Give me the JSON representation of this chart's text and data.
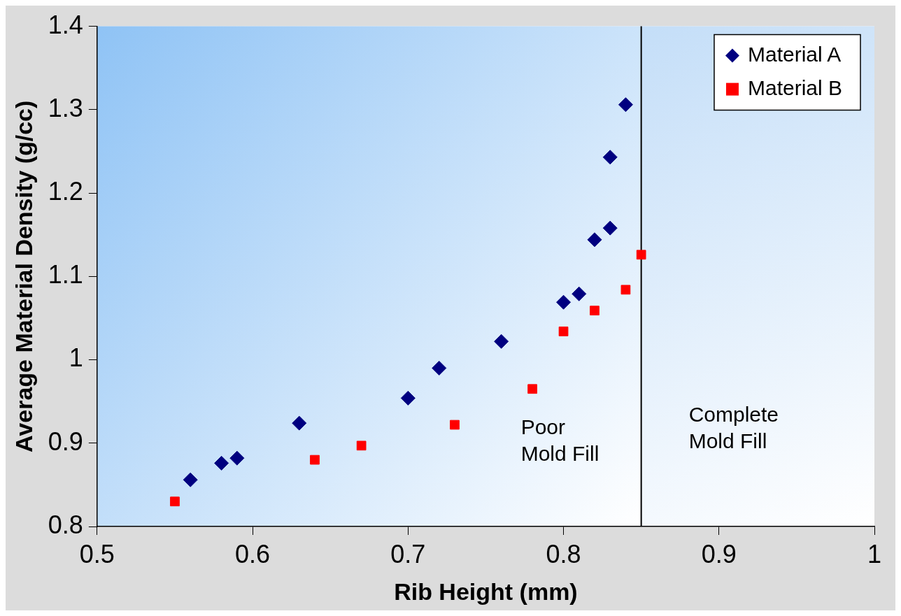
{
  "chart_data": {
    "type": "scatter",
    "xlabel": "Rib Height (mm)",
    "ylabel": "Average Material Density (g/cc)",
    "xlim": [
      0.5,
      1
    ],
    "xticks": [
      0.5,
      0.6,
      0.7,
      0.8,
      0.9,
      1
    ],
    "ylim": [
      0.8,
      1.4
    ],
    "yticks": [
      0.8,
      0.9,
      1,
      1.1,
      1.2,
      1.3,
      1.4
    ],
    "grid": false,
    "legend": "top right",
    "series": [
      {
        "name": "Material A",
        "color": "#000080",
        "marker": "diamond",
        "x": [
          0.56,
          0.58,
          0.59,
          0.63,
          0.7,
          0.72,
          0.76,
          0.8,
          0.81,
          0.82,
          0.83,
          0.83,
          0.84
        ],
        "values": [
          0.856,
          0.876,
          0.882,
          0.924,
          0.954,
          0.99,
          1.022,
          1.069,
          1.079,
          1.144,
          1.158,
          1.243,
          1.306
        ]
      },
      {
        "name": "Material B",
        "color": "#ff0000",
        "marker": "square",
        "x": [
          0.55,
          0.64,
          0.67,
          0.73,
          0.78,
          0.8,
          0.82,
          0.84,
          0.85
        ],
        "values": [
          0.83,
          0.88,
          0.897,
          0.922,
          0.965,
          1.034,
          1.059,
          1.084,
          1.126
        ]
      }
    ],
    "ref_lines": [
      {
        "axis": "x",
        "value": 0.85,
        "color": "#000000"
      }
    ],
    "bands": [
      {
        "axis": "x",
        "from": 0.5,
        "to": 0.85,
        "label": "Poor Mold Fill",
        "color": "#8fc3f5"
      },
      {
        "axis": "x",
        "from": 0.85,
        "to": 1,
        "label": "Complete Mold Fill",
        "color": "#c4def8"
      }
    ]
  }
}
